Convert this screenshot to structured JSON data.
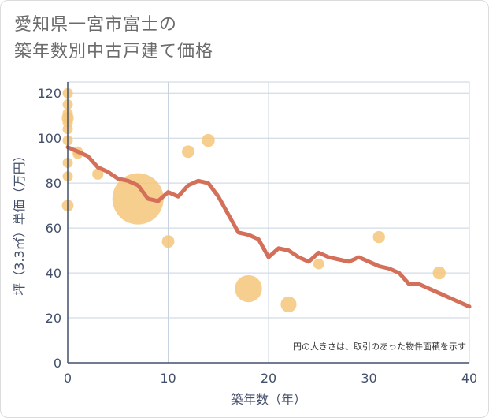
{
  "title": {
    "line1": "愛知県一宮市富士の",
    "line2": "築年数別中古戸建て価格"
  },
  "chart_data": {
    "type": "scatter",
    "xlabel": "築年数（年）",
    "ylabel": "坪（3.3㎡）単価（万円）",
    "xlim": [
      0,
      40
    ],
    "ylim": [
      0,
      125
    ],
    "x_ticks": [
      0,
      10,
      20,
      30,
      40
    ],
    "y_ticks": [
      0,
      20,
      40,
      60,
      80,
      100,
      120
    ],
    "grid": true,
    "note": "円の大きさは、取引のあった物件面積を示す",
    "colors": {
      "bubble": "#f5c57a",
      "line": "#d4705a",
      "grid": "#c8d3e0",
      "axis": "#44506b"
    },
    "bubbles": [
      {
        "x": 0,
        "y": 120,
        "size": 1
      },
      {
        "x": 0,
        "y": 115,
        "size": 1
      },
      {
        "x": 0,
        "y": 111,
        "size": 1
      },
      {
        "x": 0,
        "y": 109,
        "size": 1.4
      },
      {
        "x": 0,
        "y": 107,
        "size": 1
      },
      {
        "x": 0,
        "y": 104,
        "size": 1
      },
      {
        "x": 0,
        "y": 99,
        "size": 1
      },
      {
        "x": 0,
        "y": 89,
        "size": 1
      },
      {
        "x": 0,
        "y": 83,
        "size": 1
      },
      {
        "x": 0,
        "y": 70,
        "size": 1.3
      },
      {
        "x": 1,
        "y": 94,
        "size": 1
      },
      {
        "x": 1,
        "y": 93,
        "size": 1
      },
      {
        "x": 3,
        "y": 84,
        "size": 1.2
      },
      {
        "x": 7,
        "y": 73,
        "size": 25
      },
      {
        "x": 10,
        "y": 54,
        "size": 1.5
      },
      {
        "x": 12,
        "y": 94,
        "size": 1.5
      },
      {
        "x": 14,
        "y": 99,
        "size": 1.6
      },
      {
        "x": 18,
        "y": 33,
        "size": 7
      },
      {
        "x": 22,
        "y": 26,
        "size": 2.4
      },
      {
        "x": 25,
        "y": 44,
        "size": 1.1
      },
      {
        "x": 31,
        "y": 56,
        "size": 1.4
      },
      {
        "x": 37,
        "y": 40,
        "size": 1.6
      }
    ],
    "trend": {
      "x": [
        0,
        1,
        2,
        3,
        4,
        5,
        6,
        7,
        8,
        9,
        10,
        11,
        12,
        13,
        14,
        15,
        16,
        17,
        18,
        19,
        20,
        21,
        22,
        23,
        24,
        25,
        26,
        27,
        28,
        29,
        30,
        31,
        32,
        33,
        34,
        35,
        36,
        37,
        38,
        39,
        40
      ],
      "y": [
        96,
        94,
        92,
        87,
        85,
        82,
        81,
        79,
        73,
        72,
        76,
        74,
        79,
        81,
        80,
        74,
        66,
        58,
        57,
        55,
        47,
        51,
        50,
        47,
        45,
        49,
        47,
        46,
        45,
        47,
        45,
        43,
        42,
        40,
        35,
        35,
        33,
        31,
        29,
        27,
        25
      ]
    }
  }
}
